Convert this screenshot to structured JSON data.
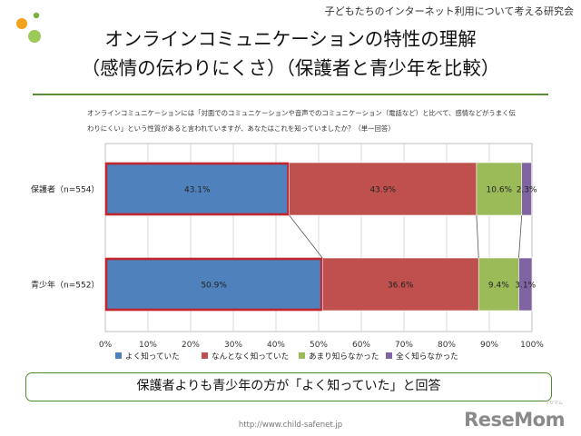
{
  "header": {
    "organization": "子どもたちのインターネット利用について考える研究会",
    "title_line1": "オンラインコミュニケーションの特性の理解",
    "title_line2": "（感情の伝わりにくさ）（保護者と青少年を比較）",
    "logo_dot_colors": [
      "#f4a11c",
      "#7bb03a",
      "#9bc95a"
    ]
  },
  "question": {
    "line1": "オンラインコミュニケーションには「対面でのコミュニケーションや音声でのコミュニケーション（電話など）と比べて、感情などがうまく伝",
    "line2": "わりにくい」という性質があると言われていますが、あなたはこれを知っていましたか？（単一回答）"
  },
  "chart_data": {
    "type": "bar",
    "orientation": "horizontal",
    "stacked": true,
    "categories": [
      "保護者（n=554）",
      "青少年（n=552）"
    ],
    "series": [
      {
        "name": "よく知っていた",
        "values": [
          43.1,
          50.9
        ],
        "labels": [
          "43.1%",
          "50.9%"
        ],
        "color": "#4f81bd"
      },
      {
        "name": "なんとなく知っていた",
        "values": [
          43.9,
          36.6
        ],
        "labels": [
          "43.9%",
          "36.6%"
        ],
        "color": "#c0504d"
      },
      {
        "name": "あまり知らなかった",
        "values": [
          10.6,
          9.4
        ],
        "labels": [
          "10.6%",
          "9.4%"
        ],
        "color": "#9bbb59"
      },
      {
        "name": "全く知らなかった",
        "values": [
          2.3,
          3.1
        ],
        "labels": [
          "2.3%",
          "3.1%"
        ],
        "color": "#8064a2"
      }
    ],
    "xlim": [
      0,
      100
    ],
    "x_ticks": [
      "0%",
      "10%",
      "20%",
      "30%",
      "40%",
      "50%",
      "60%",
      "70%",
      "80%",
      "90%",
      "100%"
    ],
    "grid": true,
    "legend": "bottom",
    "highlight_series": "よく知っていた",
    "highlight_color": "#c0262d"
  },
  "callout": "保護者よりも青少年の方が「よく知っていた」と回答",
  "footer": {
    "source": "http://www.child-safenet.jp",
    "brand": "ReseMom",
    "brand_sub": "リセマム"
  }
}
